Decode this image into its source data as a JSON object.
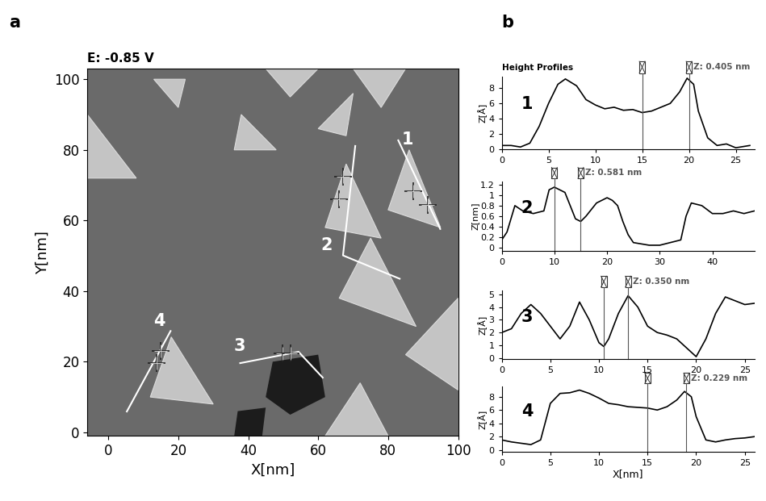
{
  "chart_data": [
    {
      "type": "image",
      "panel": "a",
      "title": "E: -0.85 V",
      "xlabel": "X[nm]",
      "ylabel": "Y[nm]",
      "xlim": [
        -6,
        100
      ],
      "ylim": [
        -1,
        103
      ],
      "xticks": [
        0,
        20,
        40,
        60,
        80,
        100
      ],
      "yticks": [
        0,
        20,
        40,
        60,
        80,
        100
      ],
      "islands": [
        [
          [
            86,
            80
          ],
          [
            95,
            58
          ],
          [
            80,
            63
          ]
        ],
        [
          [
            68,
            76
          ],
          [
            78,
            55
          ],
          [
            62,
            58
          ]
        ],
        [
          [
            75,
            55
          ],
          [
            88,
            30
          ],
          [
            66,
            38
          ]
        ],
        [
          [
            18,
            27
          ],
          [
            30,
            8
          ],
          [
            12,
            10
          ]
        ],
        [
          [
            70,
            103
          ],
          [
            85,
            103
          ],
          [
            78,
            92
          ]
        ],
        [
          [
            -6,
            90
          ],
          [
            8,
            72
          ],
          [
            -6,
            72
          ]
        ],
        [
          [
            38,
            90
          ],
          [
            48,
            80
          ],
          [
            36,
            80
          ]
        ],
        [
          [
            60,
            86
          ],
          [
            70,
            96
          ],
          [
            68,
            84
          ]
        ],
        [
          [
            85,
            22
          ],
          [
            100,
            38
          ],
          [
            100,
            12
          ]
        ],
        [
          [
            62,
            -1
          ],
          [
            72,
            14
          ],
          [
            80,
            -1
          ]
        ],
        [
          [
            45,
            103
          ],
          [
            60,
            103
          ],
          [
            52,
            95
          ]
        ],
        [
          [
            13,
            100
          ],
          [
            22,
            100
          ],
          [
            20,
            92
          ]
        ]
      ],
      "pits": [
        [
          [
            47,
            20
          ],
          [
            60,
            22
          ],
          [
            62,
            10
          ],
          [
            52,
            5
          ],
          [
            45,
            10
          ]
        ],
        [
          [
            37,
            6
          ],
          [
            45,
            7
          ],
          [
            44,
            -1
          ],
          [
            36,
            -1
          ]
        ]
      ],
      "profile_lines": [
        {
          "name": "1",
          "points": [
            [
              82.9,
              82.7
            ],
            [
              94.9,
              57.6
            ]
          ],
          "cursors": [
            [
              87.3,
              68.3
            ],
            [
              91.4,
              64.5
            ]
          ],
          "label_at": [
            85.5,
            83.0
          ]
        },
        {
          "name": "2",
          "points": [
            [
              70.6,
              81.1
            ],
            [
              67.1,
              50.1
            ],
            [
              83.3,
              43.5
            ]
          ],
          "cursors": [
            [
              67.1,
              72.4
            ],
            [
              66.0,
              66.0
            ]
          ],
          "label_at": [
            62.5,
            53.0
          ]
        },
        {
          "name": "3",
          "points": [
            [
              37.7,
              19.6
            ],
            [
              54.4,
              22.8
            ],
            [
              61.3,
              15.5
            ]
          ],
          "cursors": [
            [
              49.8,
              22.3
            ],
            [
              52.0,
              22.3
            ]
          ],
          "label_at": [
            37.5,
            24.5
          ]
        },
        {
          "name": "4",
          "points": [
            [
              17.8,
              28.7
            ],
            [
              5.3,
              5.9
            ]
          ],
          "cursors": [
            [
              15.0,
              23.0
            ],
            [
              13.9,
              19.6
            ]
          ],
          "label_at": [
            14.5,
            31.5
          ]
        }
      ]
    },
    {
      "type": "line",
      "panel": "b",
      "title": "Height Profiles",
      "name": "1",
      "color": "#000000",
      "ylabel": "Z[Å]",
      "x": [
        0,
        1,
        2,
        3,
        4,
        5,
        6,
        6.8,
        8,
        9,
        10,
        11,
        12,
        13,
        14,
        15,
        16,
        17,
        18,
        19,
        19.8,
        20.5,
        21,
        22,
        23,
        24,
        25,
        26.5
      ],
      "values": [
        0.5,
        0.5,
        0.3,
        0.8,
        3,
        6,
        8.5,
        9.2,
        8.3,
        6.5,
        5.8,
        5.3,
        5.5,
        5.1,
        5.2,
        4.8,
        5,
        5.5,
        6,
        7.5,
        9.3,
        8.5,
        5,
        1.5,
        0.5,
        0.7,
        0.2,
        0.5
      ],
      "xlim": [
        0,
        27
      ],
      "xticks": [
        0,
        5,
        10,
        15,
        20,
        25
      ],
      "ylim": [
        0,
        9.5
      ],
      "yticks": [
        0,
        2,
        4,
        6,
        8
      ],
      "cursors": [
        15,
        20
      ],
      "cursor_label": "Z: 0.405 nm"
    },
    {
      "type": "line",
      "name": "2",
      "color": "#000000",
      "ylabel": "Z[nm]",
      "x": [
        0,
        1,
        2.5,
        4,
        6,
        8,
        9,
        10,
        11,
        12,
        13,
        14,
        15,
        16,
        18,
        20,
        21,
        22,
        23,
        24,
        25,
        28,
        30,
        32,
        34,
        35,
        36,
        38,
        40,
        42,
        44,
        46,
        48
      ],
      "values": [
        0.15,
        0.3,
        0.8,
        0.7,
        0.65,
        0.7,
        1.1,
        1.15,
        1.1,
        1.05,
        0.8,
        0.55,
        0.5,
        0.6,
        0.85,
        0.95,
        0.9,
        0.8,
        0.5,
        0.25,
        0.1,
        0.05,
        0.05,
        0.1,
        0.15,
        0.6,
        0.85,
        0.8,
        0.65,
        0.65,
        0.7,
        0.65,
        0.7
      ],
      "xlim": [
        0,
        48
      ],
      "xticks": [
        0,
        10,
        20,
        30,
        40
      ],
      "ylim": [
        -0.05,
        1.25
      ],
      "yticks": [
        0,
        0.2,
        0.4,
        0.6,
        0.8,
        1,
        1.2
      ],
      "cursors": [
        10,
        15
      ],
      "cursor_label": "Z: 0.581 nm"
    },
    {
      "type": "line",
      "name": "3",
      "color": "#000000",
      "ylabel": "Z[Å]",
      "x": [
        0,
        1,
        2,
        3,
        4,
        5,
        6,
        7,
        8,
        9,
        10,
        10.5,
        11,
        12,
        13,
        14,
        15,
        16,
        17,
        18,
        19,
        20,
        21,
        22,
        23,
        24,
        25,
        26
      ],
      "values": [
        2,
        2.3,
        3.5,
        4.2,
        3.5,
        2.5,
        1.5,
        2.5,
        4.4,
        3,
        1.2,
        0.9,
        1.5,
        3.5,
        4.9,
        4,
        2.5,
        2,
        1.8,
        1.5,
        0.8,
        0.1,
        1.5,
        3.5,
        4.8,
        4.5,
        4.2,
        4.3
      ],
      "xlim": [
        0,
        26
      ],
      "xticks": [
        0,
        5,
        10,
        15,
        20,
        25
      ],
      "ylim": [
        -0.1,
        5.3
      ],
      "yticks": [
        0,
        1,
        2,
        3,
        4,
        5
      ],
      "cursors": [
        10.5,
        13
      ],
      "cursor_label": "Z: 0.350 nm"
    },
    {
      "type": "line",
      "name": "4",
      "color": "#000000",
      "ylabel": "Z[Å]",
      "xlabel": "X[nm]",
      "x": [
        0,
        1,
        2,
        3,
        4,
        5,
        6,
        7,
        8,
        9,
        10,
        11,
        12,
        13,
        14,
        15,
        16,
        17,
        18,
        18.8,
        19.5,
        20,
        21,
        22,
        23,
        24,
        25,
        26
      ],
      "values": [
        1.5,
        1.2,
        1,
        0.8,
        1.5,
        7,
        8.5,
        8.6,
        9,
        8.5,
        7.8,
        7,
        6.8,
        6.5,
        6.4,
        6.3,
        6,
        6.5,
        7.5,
        8.8,
        8,
        5,
        1.5,
        1.2,
        1.5,
        1.7,
        1.8,
        2
      ],
      "xlim": [
        0,
        26
      ],
      "xticks": [
        0,
        5,
        10,
        15,
        20,
        25
      ],
      "ylim": [
        -0.3,
        9.5
      ],
      "yticks": [
        0,
        2,
        4,
        6,
        8
      ],
      "cursors": [
        15,
        19
      ],
      "cursor_label": "Z: 0.229 nm"
    }
  ]
}
